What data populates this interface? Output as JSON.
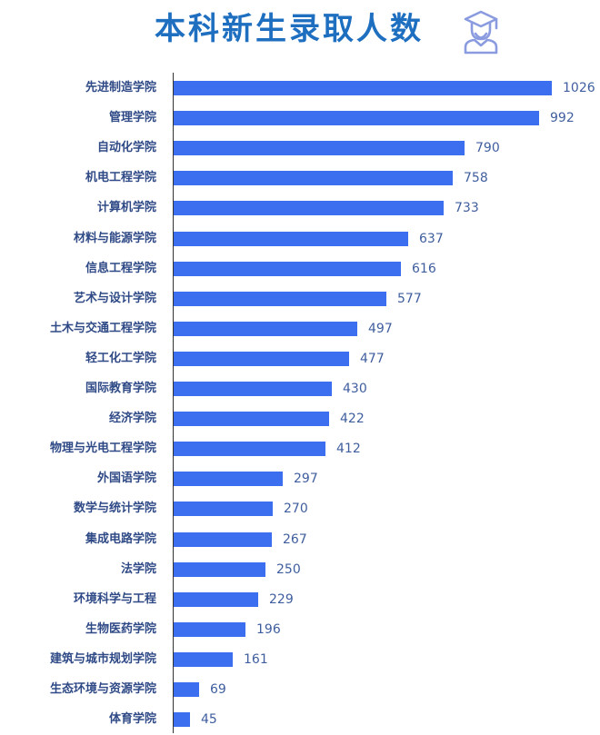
{
  "title": "本科新生录取人数",
  "title_icon": "graduate-student-icon",
  "colors": {
    "title": "#1f6fc0",
    "bar": "#3c6ef0",
    "label": "#2f4a86",
    "value": "#3f5e9e",
    "icon": "#8a9be0"
  },
  "chart_data": {
    "type": "bar",
    "orientation": "horizontal",
    "title": "本科新生录取人数",
    "xlabel": "",
    "ylabel": "",
    "grid": false,
    "legend": null,
    "data_labels": true,
    "categories": [
      "先进制造学院",
      "管理学院",
      "自动化学院",
      "机电工程学院",
      "计算机学院",
      "材料与能源学院",
      "信息工程学院",
      "艺术与设计学院",
      "土木与交通工程学院",
      "轻工化工学院",
      "国际教育学院",
      "经济学院",
      "物理与光电工程学院",
      "外国语学院",
      "数学与统计学院",
      "集成电路学院",
      "法学院",
      "环境科学与工程",
      "生物医药学院",
      "建筑与城市规划学院",
      "生态环境与资源学院",
      "体育学院"
    ],
    "values": [
      1026,
      992,
      790,
      758,
      733,
      637,
      616,
      577,
      497,
      477,
      430,
      422,
      412,
      297,
      270,
      267,
      250,
      229,
      196,
      161,
      69,
      45
    ],
    "xlim": [
      0,
      1026
    ]
  }
}
